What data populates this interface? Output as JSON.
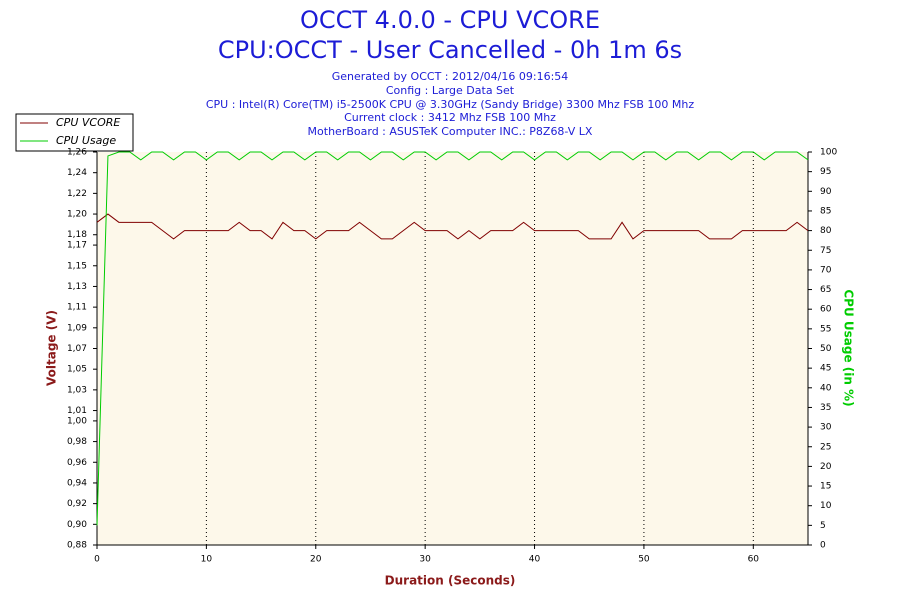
{
  "chart_data": {
    "type": "line",
    "title": [
      "OCCT 4.0.0 - CPU VCORE",
      "CPU:OCCT - User Cancelled - 0h 1m 6s"
    ],
    "subtitle": [
      "Generated by OCCT : 2012/04/16 09:16:54",
      "Config : Large Data Set",
      "CPU : Intel(R) Core(TM) i5-2500K CPU @ 3.30GHz (Sandy Bridge) 3300 Mhz FSB 100 Mhz",
      "Current clock : 3412 Mhz FSB 100 Mhz",
      "MotherBoard : ASUSTeK Computer INC.: P8Z68-V LX"
    ],
    "x_label": "Duration (Seconds)",
    "y_label": "Voltage (V)",
    "y2_label": "CPU Usage (in %)",
    "x": [
      0,
      1,
      2,
      3,
      4,
      5,
      6,
      7,
      8,
      9,
      10,
      11,
      12,
      13,
      14,
      15,
      16,
      17,
      18,
      19,
      20,
      21,
      22,
      23,
      24,
      25,
      26,
      27,
      28,
      29,
      30,
      31,
      32,
      33,
      34,
      35,
      36,
      37,
      38,
      39,
      40,
      41,
      42,
      43,
      44,
      45,
      46,
      47,
      48,
      49,
      50,
      51,
      52,
      53,
      54,
      55,
      56,
      57,
      58,
      59,
      60,
      61,
      62,
      63,
      64,
      65
    ],
    "series": [
      {
        "name": "CPU VCORE",
        "color": "#800000",
        "axis": "y",
        "values": [
          1.192,
          1.2,
          1.192,
          1.192,
          1.192,
          1.192,
          1.184,
          1.176,
          1.184,
          1.184,
          1.184,
          1.184,
          1.184,
          1.192,
          1.184,
          1.184,
          1.176,
          1.192,
          1.184,
          1.184,
          1.176,
          1.184,
          1.184,
          1.184,
          1.192,
          1.184,
          1.176,
          1.176,
          1.184,
          1.192,
          1.184,
          1.184,
          1.184,
          1.176,
          1.184,
          1.176,
          1.184,
          1.184,
          1.184,
          1.192,
          1.184,
          1.184,
          1.184,
          1.184,
          1.184,
          1.176,
          1.176,
          1.176,
          1.192,
          1.176,
          1.184,
          1.184,
          1.184,
          1.184,
          1.184,
          1.184,
          1.176,
          1.176,
          1.176,
          1.184,
          1.184,
          1.184,
          1.184,
          1.184,
          1.192,
          1.184
        ]
      },
      {
        "name": "CPU Usage",
        "color": "#00cc00",
        "axis": "y2",
        "values": [
          5,
          99,
          100,
          100,
          98,
          100,
          100,
          98,
          100,
          100,
          98,
          100,
          100,
          98,
          100,
          100,
          98,
          100,
          100,
          98,
          100,
          100,
          98,
          100,
          100,
          98,
          100,
          100,
          98,
          100,
          100,
          98,
          100,
          100,
          98,
          100,
          100,
          98,
          100,
          100,
          98,
          100,
          100,
          98,
          100,
          100,
          98,
          100,
          100,
          98,
          100,
          100,
          98,
          100,
          100,
          98,
          100,
          100,
          98,
          100,
          100,
          98,
          100,
          100,
          100,
          98
        ]
      }
    ],
    "xlim": [
      0,
      65
    ],
    "xticks": [
      0,
      10,
      20,
      30,
      40,
      50,
      60
    ],
    "ylim": [
      0.88,
      1.26
    ],
    "yticks": [
      {
        "value": 0.88,
        "label": "0,88"
      },
      {
        "value": 0.9,
        "label": "0,90"
      },
      {
        "value": 0.92,
        "label": "0,92"
      },
      {
        "value": 0.94,
        "label": "0,94"
      },
      {
        "value": 0.96,
        "label": "0,96"
      },
      {
        "value": 0.98,
        "label": "0,98"
      },
      {
        "value": 1.0,
        "label": "1,00"
      },
      {
        "value": 1.01,
        "label": "1,01"
      },
      {
        "value": 1.03,
        "label": "1,03"
      },
      {
        "value": 1.05,
        "label": "1,05"
      },
      {
        "value": 1.07,
        "label": "1,07"
      },
      {
        "value": 1.09,
        "label": "1,09"
      },
      {
        "value": 1.11,
        "label": "1,11"
      },
      {
        "value": 1.13,
        "label": "1,13"
      },
      {
        "value": 1.15,
        "label": "1,15"
      },
      {
        "value": 1.17,
        "label": "1,17"
      },
      {
        "value": 1.18,
        "label": "1,18"
      },
      {
        "value": 1.2,
        "label": "1,20"
      },
      {
        "value": 1.22,
        "label": "1,22"
      },
      {
        "value": 1.24,
        "label": "1,24"
      },
      {
        "value": 1.26,
        "label": "1,26"
      }
    ],
    "y2lim": [
      0,
      100
    ],
    "y2ticks": [
      0,
      5,
      10,
      15,
      20,
      25,
      30,
      35,
      40,
      45,
      50,
      55,
      60,
      65,
      70,
      75,
      80,
      85,
      90,
      95,
      100
    ],
    "grid": true,
    "legend": "upper left"
  }
}
